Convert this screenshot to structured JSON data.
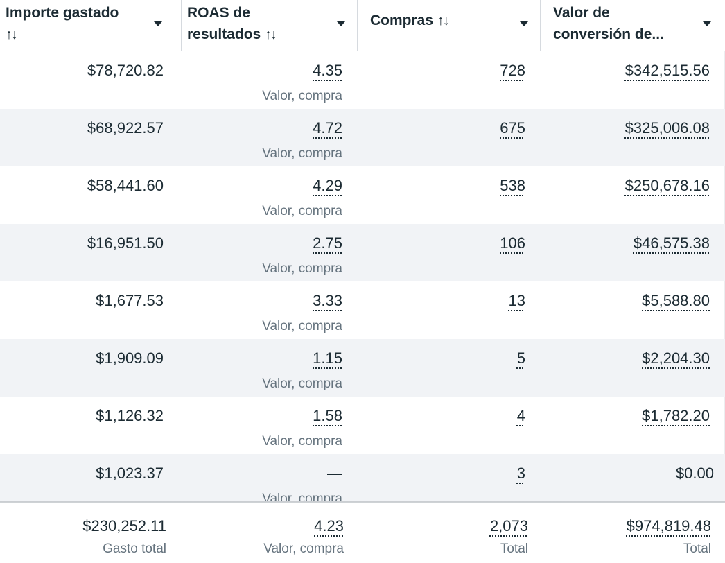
{
  "header": {
    "columns": [
      {
        "line1": "Importe gastado",
        "line2": "",
        "sort_icon": "↑↓"
      },
      {
        "line1": "ROAS de",
        "line2": "resultados ",
        "sort_icon": "↑↓"
      },
      {
        "line1": "Compras ",
        "line2": "",
        "sort_icon": "↑↓"
      },
      {
        "line1": "Valor de",
        "line2": "conversión de...",
        "sort_icon": ""
      }
    ]
  },
  "rows": [
    {
      "spend": "$78,720.82",
      "roas": "4.35",
      "roas_sub": "Valor, compra",
      "purchases": "728",
      "value": "$342,515.56"
    },
    {
      "spend": "$68,922.57",
      "roas": "4.72",
      "roas_sub": "Valor, compra",
      "purchases": "675",
      "value": "$325,006.08"
    },
    {
      "spend": "$58,441.60",
      "roas": "4.29",
      "roas_sub": "Valor, compra",
      "purchases": "538",
      "value": "$250,678.16"
    },
    {
      "spend": "$16,951.50",
      "roas": "2.75",
      "roas_sub": "Valor, compra",
      "purchases": "106",
      "value": "$46,575.38"
    },
    {
      "spend": "$1,677.53",
      "roas": "3.33",
      "roas_sub": "Valor, compra",
      "purchases": "13",
      "value": "$5,588.80"
    },
    {
      "spend": "$1,909.09",
      "roas": "1.15",
      "roas_sub": "Valor, compra",
      "purchases": "5",
      "value": "$2,204.30"
    },
    {
      "spend": "$1,126.32",
      "roas": "1.58",
      "roas_sub": "Valor, compra",
      "purchases": "4",
      "value": "$1,782.20"
    },
    {
      "spend": "$1,023.37",
      "roas": "—",
      "roas_sub": "Valor, compra",
      "purchases": "3",
      "value": "$0.00"
    }
  ],
  "totals": {
    "spend": "$230,252.11",
    "spend_sub": "Gasto total",
    "roas": "4.23",
    "roas_sub": "Valor, compra",
    "purchases": "2,073",
    "purchases_sub": "Total",
    "value": "$974,819.48",
    "value_sub": "Total"
  }
}
